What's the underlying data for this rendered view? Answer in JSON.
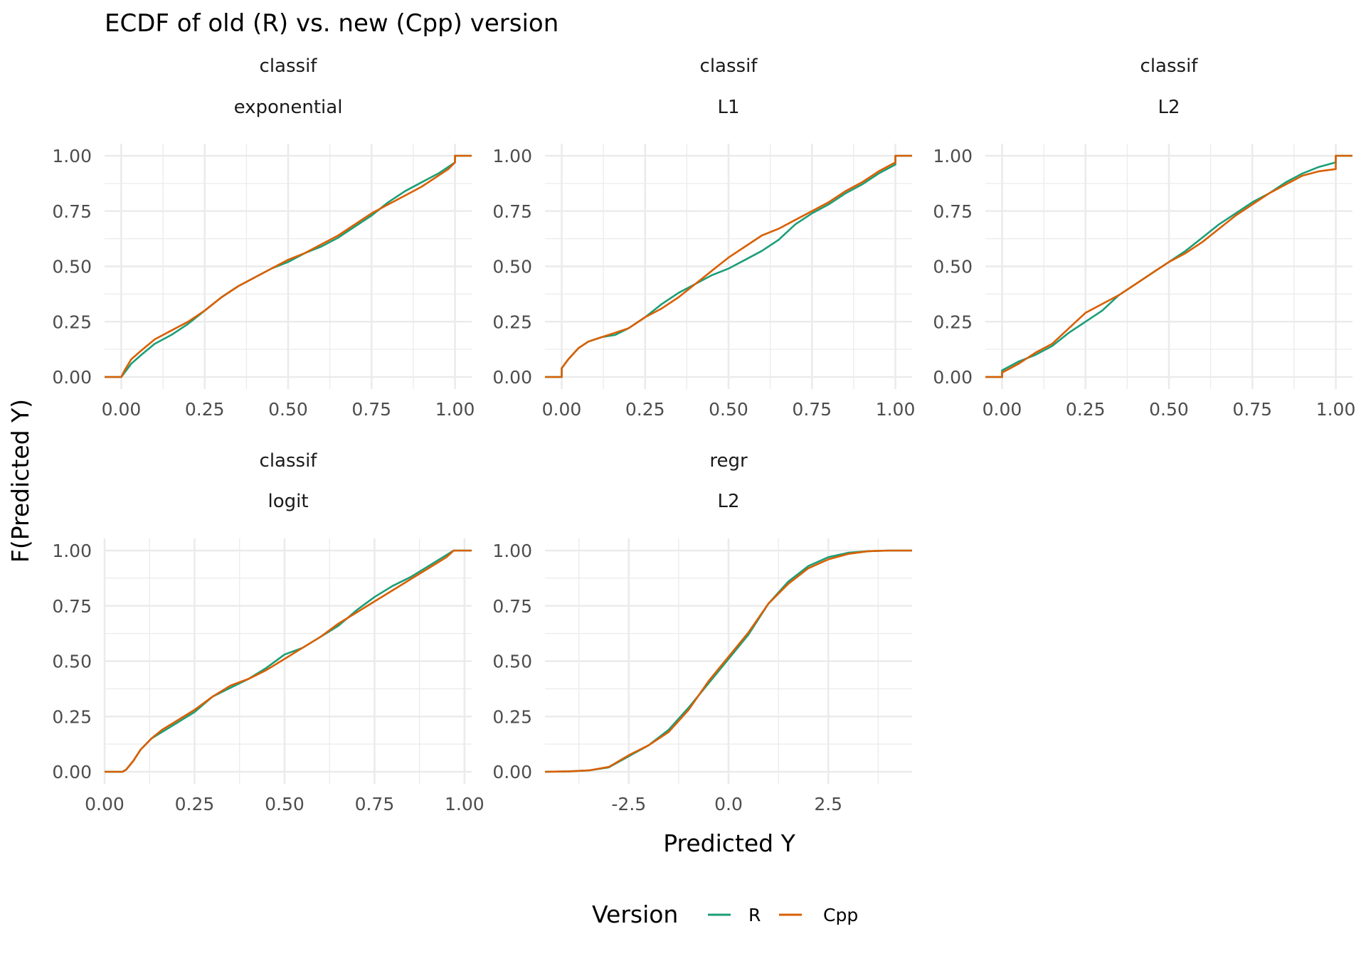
{
  "title": "ECDF of old (R) vs. new (Cpp) version",
  "chart_data": {
    "type": "line",
    "title": "ECDF of old (R) vs. new (Cpp) version",
    "xlabel": "Predicted Y",
    "ylabel": "F(Predicted Y)",
    "grid": true,
    "legend": {
      "title": "Version",
      "position": "bottom",
      "entries": [
        {
          "name": "R",
          "color": "#1b9e77"
        },
        {
          "name": "Cpp",
          "color": "#d95f02"
        }
      ]
    },
    "facets": [
      {
        "strip": [
          "classif",
          "exponential"
        ],
        "xlim": [
          -0.05,
          1.05
        ],
        "ylim": [
          0,
          1
        ],
        "xticks": [
          0,
          0.25,
          0.5,
          0.75,
          1
        ],
        "xtick_labels": [
          "0.00",
          "0.25",
          "0.50",
          "0.75",
          "1.00"
        ],
        "yticks": [
          0,
          0.25,
          0.5,
          0.75,
          1
        ],
        "ytick_labels": [
          "0.00",
          "0.25",
          "0.50",
          "0.75",
          "1.00"
        ],
        "series": [
          {
            "name": "R",
            "x": [
              -0.05,
              0,
              0.01,
              0.03,
              0.06,
              0.1,
              0.15,
              0.2,
              0.25,
              0.3,
              0.35,
              0.4,
              0.45,
              0.5,
              0.55,
              0.6,
              0.65,
              0.7,
              0.75,
              0.8,
              0.85,
              0.9,
              0.95,
              0.98,
              1.0,
              1.0,
              1.05
            ],
            "y": [
              0,
              0,
              0.02,
              0.06,
              0.1,
              0.15,
              0.19,
              0.24,
              0.3,
              0.36,
              0.41,
              0.45,
              0.49,
              0.52,
              0.56,
              0.59,
              0.63,
              0.68,
              0.73,
              0.79,
              0.84,
              0.88,
              0.92,
              0.95,
              0.97,
              1.0,
              1.0
            ]
          },
          {
            "name": "Cpp",
            "x": [
              -0.05,
              0,
              0.01,
              0.03,
              0.06,
              0.1,
              0.15,
              0.2,
              0.25,
              0.3,
              0.35,
              0.4,
              0.45,
              0.5,
              0.55,
              0.6,
              0.65,
              0.7,
              0.75,
              0.8,
              0.85,
              0.9,
              0.95,
              0.98,
              1.0,
              1.0,
              1.05
            ],
            "y": [
              0,
              0,
              0.03,
              0.08,
              0.12,
              0.17,
              0.21,
              0.25,
              0.3,
              0.36,
              0.41,
              0.45,
              0.49,
              0.53,
              0.56,
              0.6,
              0.64,
              0.69,
              0.74,
              0.78,
              0.82,
              0.86,
              0.91,
              0.94,
              0.97,
              1.0,
              1.0
            ]
          }
        ]
      },
      {
        "strip": [
          "classif",
          "L1"
        ],
        "xlim": [
          -0.05,
          1.05
        ],
        "ylim": [
          0,
          1
        ],
        "xticks": [
          0,
          0.25,
          0.5,
          0.75,
          1
        ],
        "xtick_labels": [
          "0.00",
          "0.25",
          "0.50",
          "0.75",
          "1.00"
        ],
        "yticks": [
          0,
          0.25,
          0.5,
          0.75,
          1
        ],
        "ytick_labels": [
          "0.00",
          "0.25",
          "0.50",
          "0.75",
          "1.00"
        ],
        "series": [
          {
            "name": "R",
            "x": [
              -0.05,
              0,
              0,
              0.02,
              0.05,
              0.08,
              0.12,
              0.16,
              0.2,
              0.25,
              0.3,
              0.35,
              0.4,
              0.45,
              0.5,
              0.55,
              0.6,
              0.65,
              0.7,
              0.75,
              0.8,
              0.85,
              0.9,
              0.95,
              1.0,
              1.0,
              1.05
            ],
            "y": [
              0,
              0,
              0.04,
              0.08,
              0.13,
              0.16,
              0.18,
              0.19,
              0.22,
              0.27,
              0.33,
              0.38,
              0.42,
              0.46,
              0.49,
              0.53,
              0.57,
              0.62,
              0.69,
              0.74,
              0.78,
              0.83,
              0.87,
              0.92,
              0.96,
              1.0,
              1.0
            ]
          },
          {
            "name": "Cpp",
            "x": [
              -0.05,
              0,
              0,
              0.02,
              0.05,
              0.08,
              0.12,
              0.16,
              0.2,
              0.25,
              0.3,
              0.35,
              0.4,
              0.45,
              0.5,
              0.55,
              0.6,
              0.65,
              0.7,
              0.75,
              0.8,
              0.85,
              0.9,
              0.95,
              1.0,
              1.0,
              1.05
            ],
            "y": [
              0,
              0,
              0.04,
              0.08,
              0.13,
              0.16,
              0.18,
              0.2,
              0.22,
              0.27,
              0.31,
              0.36,
              0.42,
              0.48,
              0.54,
              0.59,
              0.64,
              0.67,
              0.71,
              0.75,
              0.79,
              0.84,
              0.88,
              0.93,
              0.97,
              1.0,
              1.0
            ]
          }
        ]
      },
      {
        "strip": [
          "classif",
          "L2"
        ],
        "xlim": [
          -0.05,
          1.05
        ],
        "ylim": [
          0,
          1
        ],
        "xticks": [
          0,
          0.25,
          0.5,
          0.75,
          1
        ],
        "xtick_labels": [
          "0.00",
          "0.25",
          "0.50",
          "0.75",
          "1.00"
        ],
        "yticks": [
          0,
          0.25,
          0.5,
          0.75,
          1
        ],
        "ytick_labels": [
          "0.00",
          "0.25",
          "0.50",
          "0.75",
          "1.00"
        ],
        "series": [
          {
            "name": "R",
            "x": [
              -0.05,
              0,
              0,
              0.05,
              0.1,
              0.15,
              0.2,
              0.25,
              0.3,
              0.35,
              0.4,
              0.45,
              0.5,
              0.55,
              0.6,
              0.65,
              0.7,
              0.75,
              0.8,
              0.85,
              0.9,
              0.95,
              1.0,
              1.0,
              1.05
            ],
            "y": [
              0,
              0,
              0.03,
              0.07,
              0.1,
              0.14,
              0.2,
              0.25,
              0.3,
              0.37,
              0.42,
              0.47,
              0.52,
              0.57,
              0.63,
              0.69,
              0.74,
              0.79,
              0.83,
              0.88,
              0.92,
              0.95,
              0.97,
              1.0,
              1.0
            ]
          },
          {
            "name": "Cpp",
            "x": [
              -0.05,
              0,
              0,
              0.05,
              0.1,
              0.15,
              0.2,
              0.25,
              0.3,
              0.35,
              0.4,
              0.45,
              0.5,
              0.55,
              0.6,
              0.65,
              0.7,
              0.75,
              0.8,
              0.85,
              0.9,
              0.95,
              1.0,
              1.0,
              1.05
            ],
            "y": [
              0,
              0,
              0.02,
              0.06,
              0.11,
              0.15,
              0.22,
              0.29,
              0.33,
              0.37,
              0.42,
              0.47,
              0.52,
              0.56,
              0.61,
              0.67,
              0.73,
              0.78,
              0.83,
              0.87,
              0.91,
              0.93,
              0.94,
              1.0,
              1.0
            ]
          }
        ]
      },
      {
        "strip": [
          "classif",
          "logit"
        ],
        "xlim": [
          0,
          1.02
        ],
        "ylim": [
          0,
          1
        ],
        "xticks": [
          0,
          0.25,
          0.5,
          0.75,
          1
        ],
        "xtick_labels": [
          "0.00",
          "0.25",
          "0.50",
          "0.75",
          "1.00"
        ],
        "yticks": [
          0,
          0.25,
          0.5,
          0.75,
          1
        ],
        "ytick_labels": [
          "0.00",
          "0.25",
          "0.50",
          "0.75",
          "1.00"
        ],
        "series": [
          {
            "name": "R",
            "x": [
              0,
              0.05,
              0.06,
              0.08,
              0.1,
              0.13,
              0.16,
              0.2,
              0.25,
              0.3,
              0.35,
              0.4,
              0.45,
              0.5,
              0.55,
              0.6,
              0.65,
              0.7,
              0.75,
              0.8,
              0.85,
              0.9,
              0.95,
              0.97,
              1.0,
              1.02
            ],
            "y": [
              0,
              0,
              0.01,
              0.05,
              0.1,
              0.15,
              0.18,
              0.22,
              0.27,
              0.34,
              0.38,
              0.42,
              0.47,
              0.53,
              0.56,
              0.61,
              0.66,
              0.73,
              0.79,
              0.84,
              0.88,
              0.93,
              0.98,
              1.0,
              1.0,
              1.0
            ]
          },
          {
            "name": "Cpp",
            "x": [
              0,
              0.05,
              0.06,
              0.08,
              0.1,
              0.13,
              0.16,
              0.2,
              0.25,
              0.3,
              0.35,
              0.4,
              0.45,
              0.5,
              0.55,
              0.6,
              0.65,
              0.7,
              0.75,
              0.8,
              0.85,
              0.9,
              0.95,
              0.97,
              1.0,
              1.02
            ],
            "y": [
              0,
              0,
              0.01,
              0.05,
              0.1,
              0.15,
              0.19,
              0.23,
              0.28,
              0.34,
              0.39,
              0.42,
              0.46,
              0.51,
              0.56,
              0.61,
              0.67,
              0.72,
              0.77,
              0.82,
              0.87,
              0.92,
              0.97,
              1.0,
              1.0,
              1.0
            ]
          }
        ]
      },
      {
        "strip": [
          "regr",
          "L2"
        ],
        "xlim": [
          -4.6,
          4.6
        ],
        "ylim": [
          0,
          1
        ],
        "xticks": [
          -2.5,
          0,
          2.5
        ],
        "xtick_labels": [
          "-2.5",
          "0.0",
          "2.5"
        ],
        "yticks": [
          0,
          0.25,
          0.5,
          0.75,
          1
        ],
        "ytick_labels": [
          "0.00",
          "0.25",
          "0.50",
          "0.75",
          "1.00"
        ],
        "series": [
          {
            "name": "R",
            "x": [
              -4.6,
              -4,
              -3.5,
              -3,
              -2.5,
              -2,
              -1.5,
              -1,
              -0.5,
              0,
              0.5,
              1,
              1.5,
              2,
              2.5,
              3,
              3.5,
              4,
              4.6
            ],
            "y": [
              0,
              0.002,
              0.006,
              0.02,
              0.07,
              0.12,
              0.19,
              0.29,
              0.4,
              0.51,
              0.62,
              0.76,
              0.86,
              0.93,
              0.97,
              0.99,
              0.997,
              1.0,
              1.0
            ]
          },
          {
            "name": "Cpp",
            "x": [
              -4.6,
              -4,
              -3.5,
              -3,
              -2.5,
              -2,
              -1.5,
              -1,
              -0.5,
              0,
              0.5,
              1,
              1.5,
              2,
              2.5,
              3,
              3.5,
              4,
              4.6
            ],
            "y": [
              0,
              0.002,
              0.006,
              0.022,
              0.075,
              0.12,
              0.18,
              0.28,
              0.41,
              0.52,
              0.63,
              0.76,
              0.85,
              0.92,
              0.96,
              0.985,
              0.997,
              1.0,
              1.0
            ]
          }
        ]
      }
    ]
  }
}
